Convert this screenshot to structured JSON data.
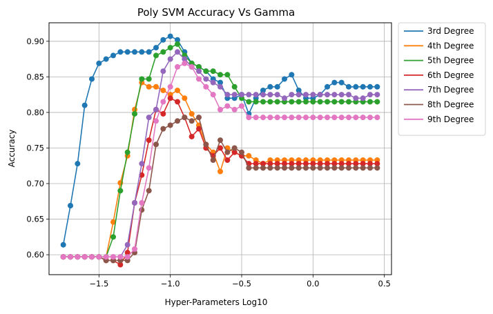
{
  "chart_data": {
    "type": "line",
    "title": "Poly SVM Accuracy Vs Gamma",
    "xlabel": "Hyper-Parameters Log10",
    "ylabel": "Accuracy",
    "xlim": [
      -1.85,
      0.55
    ],
    "ylim": [
      0.572,
      0.926
    ],
    "xticks": [
      -1.5,
      -1.0,
      -0.5,
      0.0,
      0.5
    ],
    "xtick_labels": [
      "−1.5",
      "−1.0",
      "−0.5",
      "0.0",
      "0.5"
    ],
    "yticks": [
      0.6,
      0.65,
      0.7,
      0.75,
      0.8,
      0.85,
      0.9
    ],
    "ytick_labels": [
      "0.60",
      "0.65",
      "0.70",
      "0.75",
      "0.80",
      "0.85",
      "0.90"
    ],
    "grid": true,
    "legend_position": "outside-top-right",
    "x": [
      -1.75,
      -1.7,
      -1.65,
      -1.6,
      -1.55,
      -1.5,
      -1.45,
      -1.4,
      -1.35,
      -1.3,
      -1.25,
      -1.2,
      -1.15,
      -1.1,
      -1.05,
      -1.0,
      -0.95,
      -0.9,
      -0.85,
      -0.8,
      -0.75,
      -0.7,
      -0.65,
      -0.6,
      -0.55,
      -0.5,
      -0.45,
      -0.4,
      -0.35,
      -0.3,
      -0.25,
      -0.2,
      -0.15,
      -0.1,
      -0.05,
      0.0,
      0.05,
      0.1,
      0.15,
      0.2,
      0.25,
      0.3,
      0.35,
      0.4,
      0.45
    ],
    "series": [
      {
        "name": "3rd Degree",
        "color": "#1f77b4",
        "values": [
          0.614,
          0.669,
          0.728,
          0.81,
          0.847,
          0.869,
          0.875,
          0.88,
          0.885,
          0.885,
          0.885,
          0.885,
          0.885,
          0.891,
          0.902,
          0.907,
          0.902,
          0.885,
          0.869,
          0.864,
          0.858,
          0.847,
          0.842,
          0.82,
          0.82,
          0.825,
          0.798,
          0.82,
          0.831,
          0.836,
          0.836,
          0.847,
          0.853,
          0.831,
          0.82,
          0.82,
          0.825,
          0.836,
          0.842,
          0.842,
          0.836,
          0.836,
          0.836,
          0.836,
          0.836
        ]
      },
      {
        "name": "4th Degree",
        "color": "#ff7f0e",
        "values": [
          0.597,
          0.597,
          0.597,
          0.597,
          0.597,
          0.597,
          0.597,
          0.646,
          0.701,
          0.739,
          0.804,
          0.842,
          0.836,
          0.836,
          0.831,
          0.825,
          0.831,
          0.82,
          0.798,
          0.782,
          0.755,
          0.744,
          0.717,
          0.75,
          0.744,
          0.739,
          0.739,
          0.733,
          0.728,
          0.733,
          0.733,
          0.733,
          0.733,
          0.733,
          0.733,
          0.733,
          0.733,
          0.733,
          0.733,
          0.733,
          0.733,
          0.733,
          0.733,
          0.733,
          0.733
        ]
      },
      {
        "name": "5th Degree",
        "color": "#2ca02c",
        "values": [
          0.597,
          0.597,
          0.597,
          0.597,
          0.597,
          0.597,
          0.597,
          0.625,
          0.69,
          0.744,
          0.798,
          0.847,
          0.847,
          0.88,
          0.885,
          0.891,
          0.896,
          0.88,
          0.869,
          0.864,
          0.858,
          0.858,
          0.853,
          0.853,
          0.836,
          0.82,
          0.815,
          0.815,
          0.815,
          0.815,
          0.815,
          0.815,
          0.815,
          0.815,
          0.815,
          0.815,
          0.815,
          0.815,
          0.815,
          0.815,
          0.815,
          0.815,
          0.815,
          0.815,
          0.815
        ]
      },
      {
        "name": "6th Degree",
        "color": "#d62728",
        "values": [
          0.597,
          0.597,
          0.597,
          0.597,
          0.597,
          0.597,
          0.592,
          0.592,
          0.586,
          0.603,
          0.673,
          0.712,
          0.761,
          0.804,
          0.798,
          0.82,
          0.815,
          0.793,
          0.766,
          0.777,
          0.75,
          0.739,
          0.75,
          0.733,
          0.744,
          0.739,
          0.728,
          0.728,
          0.728,
          0.728,
          0.728,
          0.728,
          0.728,
          0.728,
          0.728,
          0.728,
          0.728,
          0.728,
          0.728,
          0.728,
          0.728,
          0.728,
          0.728,
          0.728,
          0.728
        ]
      },
      {
        "name": "7th Degree",
        "color": "#9467bd",
        "values": [
          0.597,
          0.597,
          0.597,
          0.597,
          0.597,
          0.597,
          0.597,
          0.597,
          0.597,
          0.614,
          0.673,
          0.728,
          0.793,
          0.804,
          0.858,
          0.875,
          0.885,
          0.875,
          0.864,
          0.858,
          0.847,
          0.842,
          0.836,
          0.825,
          0.825,
          0.825,
          0.825,
          0.825,
          0.825,
          0.825,
          0.825,
          0.82,
          0.825,
          0.825,
          0.825,
          0.825,
          0.825,
          0.825,
          0.825,
          0.825,
          0.825,
          0.82,
          0.82,
          0.825,
          0.825
        ]
      },
      {
        "name": "8th Degree",
        "color": "#8c564b",
        "values": [
          0.597,
          0.597,
          0.597,
          0.597,
          0.597,
          0.597,
          0.592,
          0.592,
          0.592,
          0.592,
          0.603,
          0.663,
          0.69,
          0.755,
          0.777,
          0.782,
          0.788,
          0.793,
          0.788,
          0.793,
          0.755,
          0.733,
          0.761,
          0.744,
          0.75,
          0.744,
          0.722,
          0.722,
          0.722,
          0.722,
          0.722,
          0.722,
          0.722,
          0.722,
          0.722,
          0.722,
          0.722,
          0.722,
          0.722,
          0.722,
          0.722,
          0.722,
          0.722,
          0.722,
          0.722
        ]
      },
      {
        "name": "9th Degree",
        "color": "#e377c2",
        "values": [
          0.597,
          0.597,
          0.597,
          0.597,
          0.597,
          0.597,
          0.597,
          0.597,
          0.597,
          0.597,
          0.608,
          0.673,
          0.722,
          0.788,
          0.815,
          0.836,
          0.864,
          0.869,
          0.864,
          0.847,
          0.836,
          0.825,
          0.804,
          0.809,
          0.804,
          0.809,
          0.793,
          0.793,
          0.793,
          0.793,
          0.793,
          0.793,
          0.793,
          0.793,
          0.793,
          0.793,
          0.793,
          0.793,
          0.793,
          0.793,
          0.793,
          0.793,
          0.793,
          0.793,
          0.793
        ]
      }
    ]
  }
}
